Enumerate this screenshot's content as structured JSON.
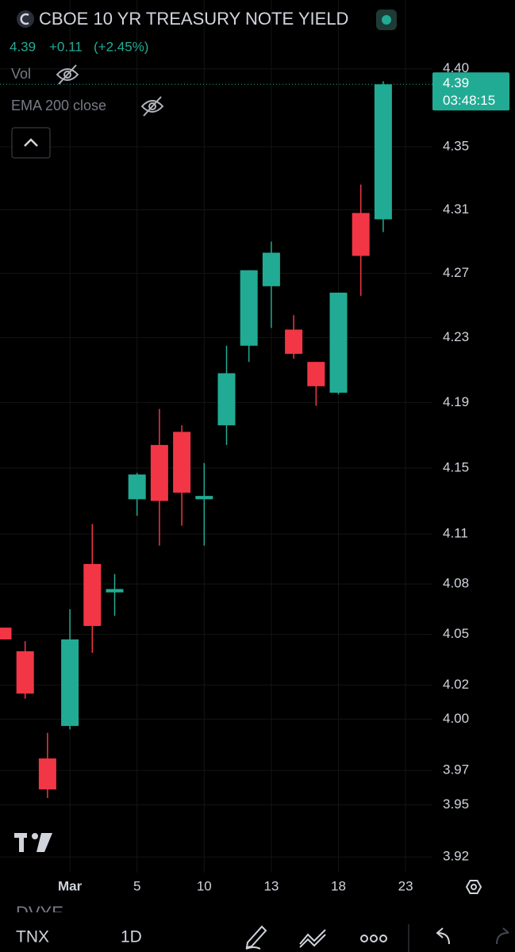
{
  "header": {
    "title": "CBOE 10 YR TREASURY NOTE YIELD",
    "price": 4.39,
    "change": "+0.11",
    "change_pct": "(+2.45%)",
    "indicators": [
      "Vol",
      "EMA 200 close"
    ]
  },
  "chart_data": {
    "type": "candlestick",
    "categories": [
      null,
      null,
      null,
      "Mar",
      null,
      null,
      "5",
      null,
      null,
      "10",
      null,
      null,
      "13",
      null,
      null,
      "18",
      null,
      null,
      "23"
    ],
    "open": [
      4.054,
      4.04,
      3.977,
      3.996,
      4.092,
      4.075,
      4.131,
      4.164,
      4.172,
      4.131,
      4.176,
      4.225,
      4.262,
      4.235,
      4.215,
      4.196,
      4.308,
      4.304,
      null
    ],
    "high": [
      4.054,
      4.046,
      3.992,
      4.065,
      4.116,
      4.086,
      4.147,
      4.186,
      4.176,
      4.153,
      4.225,
      4.272,
      4.29,
      4.244,
      4.215,
      4.258,
      4.326,
      4.392,
      null
    ],
    "low": [
      4.047,
      4.012,
      3.954,
      3.994,
      4.039,
      4.061,
      4.121,
      4.103,
      4.115,
      4.103,
      4.164,
      4.215,
      4.236,
      4.217,
      4.188,
      4.195,
      4.256,
      4.296,
      null
    ],
    "close": [
      4.047,
      4.015,
      3.959,
      4.047,
      4.055,
      4.077,
      4.146,
      4.13,
      4.135,
      4.133,
      4.208,
      4.272,
      4.283,
      4.22,
      4.2,
      4.258,
      4.281,
      4.39,
      null
    ],
    "up_color": "#22ab94",
    "down_color": "#f23645",
    "ylim": [
      3.911,
      4.406
    ],
    "log_scale": true,
    "grid": true,
    "yticks": [
      {
        "value": 4.4,
        "label": "4.40"
      },
      4.35,
      4.31,
      4.27,
      4.23,
      4.19,
      4.15,
      4.11,
      4.08,
      4.05,
      4.02,
      {
        "value": 4.0,
        "label": "4.00"
      },
      3.97,
      3.95,
      3.92
    ],
    "last_price": {
      "value": 4.39,
      "time": "03:48:15"
    }
  },
  "toolbar": {
    "symbol": "TNX",
    "interval": "1D",
    "hidden_symbol": "DVYE"
  }
}
